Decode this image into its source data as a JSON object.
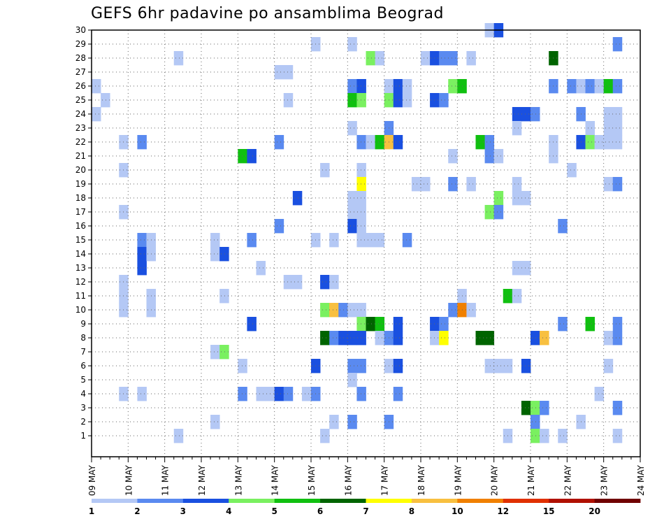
{
  "chart_data": {
    "type": "heatmap",
    "title": "GEFS 6hr padavine po ansamblima Beograd",
    "xlabel": "",
    "ylabel": "",
    "x_tick_labels": [
      "09 MAY",
      "10 MAY",
      "11 MAY",
      "12 MAY",
      "13 MAY",
      "14 MAY",
      "15 MAY",
      "16 MAY",
      "17 MAY",
      "18 MAY",
      "19 MAY",
      "20 MAY",
      "21 MAY",
      "22 MAY",
      "23 MAY",
      "24 MAY"
    ],
    "y_tick_labels": [
      "1",
      "2",
      "3",
      "4",
      "5",
      "6",
      "7",
      "8",
      "9",
      "10",
      "11",
      "12",
      "13",
      "14",
      "15",
      "16",
      "17",
      "18",
      "19",
      "20",
      "21",
      "22",
      "23",
      "24",
      "25",
      "26",
      "27",
      "28",
      "29",
      "30"
    ],
    "time_step_hours": 6,
    "grid": "dotted",
    "colorbar": {
      "labels": [
        "1",
        "2",
        "3",
        "4",
        "5",
        "6",
        "7",
        "8",
        "10",
        "12",
        "15",
        "20"
      ],
      "colors": [
        "#b4c8f5",
        "#5a8af0",
        "#1a50e0",
        "#7af060",
        "#10c010",
        "#006400",
        "#ffff00",
        "#f8c040",
        "#f08000",
        "#e03000",
        "#b01000",
        "#700000"
      ]
    },
    "cells": [
      [
        0,
        26,
        1,
        "#b4c8f5"
      ],
      [
        0,
        24,
        1,
        "#b4c8f5"
      ],
      [
        1,
        25,
        1,
        "#b4c8f5"
      ],
      [
        3,
        11,
        1,
        "#b4c8f5"
      ],
      [
        3,
        10,
        1,
        "#b4c8f5"
      ],
      [
        3,
        12,
        1,
        "#b4c8f5"
      ],
      [
        3,
        17,
        1,
        "#b4c8f5"
      ],
      [
        3,
        22,
        1,
        "#b4c8f5"
      ],
      [
        3,
        20,
        1,
        "#b4c8f5"
      ],
      [
        3,
        4,
        1,
        "#b4c8f5"
      ],
      [
        5,
        22,
        2,
        "#5a8af0"
      ],
      [
        5,
        15,
        2,
        "#5a8af0"
      ],
      [
        5,
        14,
        3,
        "#1a50e0"
      ],
      [
        5,
        13,
        3,
        "#1a50e0"
      ],
      [
        5,
        4,
        1,
        "#b4c8f5"
      ],
      [
        6,
        15,
        1,
        "#b4c8f5"
      ],
      [
        6,
        14,
        1,
        "#b4c8f5"
      ],
      [
        6,
        10,
        1,
        "#b4c8f5"
      ],
      [
        6,
        11,
        1,
        "#b4c8f5"
      ],
      [
        9,
        28,
        1,
        "#b4c8f5"
      ],
      [
        9,
        1,
        1,
        "#b4c8f5"
      ],
      [
        13,
        15,
        1,
        "#b4c8f5"
      ],
      [
        13,
        14,
        1,
        "#b4c8f5"
      ],
      [
        13,
        7,
        1,
        "#b4c8f5"
      ],
      [
        13,
        2,
        1,
        "#b4c8f5"
      ],
      [
        14,
        14,
        3,
        "#1a50e0"
      ],
      [
        14,
        11,
        1,
        "#b4c8f5"
      ],
      [
        14,
        7,
        5,
        "#7af060"
      ],
      [
        16,
        21,
        6,
        "#10c010"
      ],
      [
        16,
        6,
        1,
        "#b4c8f5"
      ],
      [
        16,
        4,
        2,
        "#5a8af0"
      ],
      [
        17,
        21,
        3,
        "#1a50e0"
      ],
      [
        17,
        15,
        2,
        "#5a8af0"
      ],
      [
        17,
        9,
        3,
        "#1a50e0"
      ],
      [
        18,
        13,
        1,
        "#b4c8f5"
      ],
      [
        18,
        4,
        1,
        "#b4c8f5"
      ],
      [
        19,
        4,
        1,
        "#b4c8f5"
      ],
      [
        20,
        27,
        1,
        "#b4c8f5"
      ],
      [
        20,
        22,
        2,
        "#5a8af0"
      ],
      [
        20,
        16,
        2,
        "#5a8af0"
      ],
      [
        20,
        4,
        3,
        "#1a50e0"
      ],
      [
        21,
        27,
        1,
        "#b4c8f5"
      ],
      [
        21,
        25,
        1,
        "#b4c8f5"
      ],
      [
        21,
        12,
        1,
        "#b4c8f5"
      ],
      [
        21,
        4,
        2,
        "#5a8af0"
      ],
      [
        22,
        18,
        3,
        "#1a50e0"
      ],
      [
        22,
        12,
        1,
        "#b4c8f5"
      ],
      [
        23,
        4,
        1,
        "#b4c8f5"
      ],
      [
        24,
        29,
        1,
        "#b4c8f5"
      ],
      [
        24,
        15,
        1,
        "#b4c8f5"
      ],
      [
        24,
        6,
        3,
        "#1a50e0"
      ],
      [
        24,
        4,
        2,
        "#5a8af0"
      ],
      [
        25,
        20,
        1,
        "#b4c8f5"
      ],
      [
        25,
        12,
        3,
        "#1a50e0"
      ],
      [
        25,
        10,
        5,
        "#7af060"
      ],
      [
        25,
        8,
        6,
        "#006400"
      ],
      [
        25,
        1,
        1,
        "#b4c8f5"
      ],
      [
        26,
        15,
        1,
        "#b4c8f5"
      ],
      [
        26,
        12,
        1,
        "#b4c8f5"
      ],
      [
        26,
        10,
        8,
        "#f8c040"
      ],
      [
        26,
        8,
        2,
        "#5a8af0"
      ],
      [
        26,
        2,
        1,
        "#b4c8f5"
      ],
      [
        27,
        10,
        2,
        "#5a8af0"
      ],
      [
        27,
        8,
        3,
        "#1a50e0"
      ],
      [
        28,
        29,
        1,
        "#b4c8f5"
      ],
      [
        28,
        26,
        2,
        "#5a8af0"
      ],
      [
        28,
        25,
        6,
        "#10c010"
      ],
      [
        28,
        23,
        1,
        "#b4c8f5"
      ],
      [
        28,
        18,
        1,
        "#b4c8f5"
      ],
      [
        28,
        17,
        1,
        "#b4c8f5"
      ],
      [
        28,
        16,
        3,
        "#1a50e0"
      ],
      [
        28,
        10,
        1,
        "#b4c8f5"
      ],
      [
        28,
        8,
        3,
        "#1a50e0"
      ],
      [
        28,
        6,
        2,
        "#5a8af0"
      ],
      [
        28,
        5,
        1,
        "#b4c8f5"
      ],
      [
        28,
        2,
        2,
        "#5a8af0"
      ],
      [
        29,
        26,
        3,
        "#1a50e0"
      ],
      [
        29,
        25,
        5,
        "#7af060"
      ],
      [
        29,
        22,
        2,
        "#5a8af0"
      ],
      [
        29,
        20,
        1,
        "#b4c8f5"
      ],
      [
        29,
        19,
        7,
        "#ffff00"
      ],
      [
        29,
        18,
        1,
        "#b4c8f5"
      ],
      [
        29,
        17,
        1,
        "#b4c8f5"
      ],
      [
        29,
        16,
        1,
        "#b4c8f5"
      ],
      [
        29,
        15,
        1,
        "#b4c8f5"
      ],
      [
        29,
        10,
        1,
        "#b4c8f5"
      ],
      [
        29,
        9,
        5,
        "#7af060"
      ],
      [
        29,
        8,
        3,
        "#1a50e0"
      ],
      [
        29,
        6,
        2,
        "#5a8af0"
      ],
      [
        29,
        4,
        2,
        "#5a8af0"
      ],
      [
        30,
        28,
        5,
        "#7af060"
      ],
      [
        30,
        22,
        1,
        "#b4c8f5"
      ],
      [
        30,
        15,
        1,
        "#b4c8f5"
      ],
      [
        30,
        9,
        6,
        "#006400"
      ],
      [
        31,
        28,
        1,
        "#b4c8f5"
      ],
      [
        31,
        22,
        6,
        "#10c010"
      ],
      [
        31,
        15,
        1,
        "#b4c8f5"
      ],
      [
        31,
        9,
        5,
        "#10c010"
      ],
      [
        31,
        8,
        1,
        "#b4c8f5"
      ],
      [
        32,
        26,
        1,
        "#b4c8f5"
      ],
      [
        32,
        25,
        5,
        "#7af060"
      ],
      [
        32,
        23,
        2,
        "#5a8af0"
      ],
      [
        32,
        22,
        8,
        "#f8c040"
      ],
      [
        32,
        8,
        2,
        "#5a8af0"
      ],
      [
        32,
        6,
        1,
        "#b4c8f5"
      ],
      [
        32,
        2,
        2,
        "#5a8af0"
      ],
      [
        33,
        26,
        3,
        "#1a50e0"
      ],
      [
        33,
        25,
        3,
        "#1a50e0"
      ],
      [
        33,
        22,
        3,
        "#1a50e0"
      ],
      [
        33,
        9,
        3,
        "#1a50e0"
      ],
      [
        33,
        8,
        3,
        "#1a50e0"
      ],
      [
        33,
        6,
        3,
        "#1a50e0"
      ],
      [
        33,
        4,
        2,
        "#5a8af0"
      ],
      [
        34,
        26,
        1,
        "#b4c8f5"
      ],
      [
        34,
        25,
        1,
        "#b4c8f5"
      ],
      [
        34,
        15,
        2,
        "#5a8af0"
      ],
      [
        35,
        19,
        1,
        "#b4c8f5"
      ],
      [
        36,
        28,
        1,
        "#b4c8f5"
      ],
      [
        36,
        19,
        1,
        "#b4c8f5"
      ],
      [
        37,
        28,
        3,
        "#1a50e0"
      ],
      [
        37,
        25,
        3,
        "#1a50e0"
      ],
      [
        37,
        9,
        3,
        "#1a50e0"
      ],
      [
        37,
        8,
        1,
        "#b4c8f5"
      ],
      [
        38,
        28,
        2,
        "#5a8af0"
      ],
      [
        38,
        25,
        2,
        "#5a8af0"
      ],
      [
        38,
        9,
        2,
        "#5a8af0"
      ],
      [
        38,
        8,
        7,
        "#ffff00"
      ],
      [
        39,
        28,
        2,
        "#5a8af0"
      ],
      [
        39,
        26,
        5,
        "#7af060"
      ],
      [
        39,
        21,
        1,
        "#b4c8f5"
      ],
      [
        39,
        19,
        2,
        "#5a8af0"
      ],
      [
        39,
        10,
        2,
        "#5a8af0"
      ],
      [
        40,
        26,
        6,
        "#10c010"
      ],
      [
        40,
        11,
        1,
        "#b4c8f5"
      ],
      [
        40,
        10,
        10,
        "#f08000"
      ],
      [
        41,
        28,
        1,
        "#b4c8f5"
      ],
      [
        41,
        19,
        1,
        "#b4c8f5"
      ],
      [
        41,
        10,
        1,
        "#b4c8f5"
      ],
      [
        42,
        22,
        6,
        "#10c010"
      ],
      [
        42,
        8,
        6,
        "#006400"
      ],
      [
        43,
        30,
        1,
        "#b4c8f5"
      ],
      [
        43,
        22,
        2,
        "#5a8af0"
      ],
      [
        43,
        21,
        2,
        "#5a8af0"
      ],
      [
        43,
        17,
        5,
        "#7af060"
      ],
      [
        43,
        8,
        6,
        "#006400"
      ],
      [
        43,
        6,
        1,
        "#b4c8f5"
      ],
      [
        44,
        30,
        3,
        "#1a50e0"
      ],
      [
        44,
        21,
        1,
        "#b4c8f5"
      ],
      [
        44,
        18,
        5,
        "#7af060"
      ],
      [
        44,
        17,
        2,
        "#5a8af0"
      ],
      [
        44,
        6,
        1,
        "#b4c8f5"
      ],
      [
        45,
        11,
        6,
        "#10c010"
      ],
      [
        45,
        6,
        1,
        "#b4c8f5"
      ],
      [
        45,
        1,
        1,
        "#b4c8f5"
      ],
      [
        46,
        24,
        3,
        "#1a50e0"
      ],
      [
        46,
        23,
        1,
        "#b4c8f5"
      ],
      [
        46,
        19,
        1,
        "#b4c8f5"
      ],
      [
        46,
        18,
        1,
        "#b4c8f5"
      ],
      [
        46,
        13,
        1,
        "#b4c8f5"
      ],
      [
        46,
        11,
        1,
        "#b4c8f5"
      ],
      [
        47,
        24,
        3,
        "#1a50e0"
      ],
      [
        47,
        18,
        1,
        "#b4c8f5"
      ],
      [
        47,
        13,
        1,
        "#b4c8f5"
      ],
      [
        47,
        6,
        3,
        "#1a50e0"
      ],
      [
        47,
        3,
        6,
        "#006400"
      ],
      [
        48,
        24,
        2,
        "#5a8af0"
      ],
      [
        48,
        8,
        3,
        "#1a50e0"
      ],
      [
        48,
        3,
        5,
        "#7af060"
      ],
      [
        48,
        2,
        2,
        "#5a8af0"
      ],
      [
        48,
        1,
        5,
        "#7af060"
      ],
      [
        49,
        8,
        8,
        "#f8c040"
      ],
      [
        49,
        3,
        2,
        "#5a8af0"
      ],
      [
        49,
        1,
        1,
        "#b4c8f5"
      ],
      [
        50,
        28,
        6,
        "#006400"
      ],
      [
        50,
        26,
        2,
        "#5a8af0"
      ],
      [
        50,
        22,
        1,
        "#b4c8f5"
      ],
      [
        50,
        21,
        1,
        "#b4c8f5"
      ],
      [
        51,
        16,
        2,
        "#5a8af0"
      ],
      [
        51,
        9,
        2,
        "#5a8af0"
      ],
      [
        51,
        1,
        1,
        "#b4c8f5"
      ],
      [
        52,
        26,
        2,
        "#5a8af0"
      ],
      [
        52,
        20,
        1,
        "#b4c8f5"
      ],
      [
        53,
        26,
        1,
        "#b4c8f5"
      ],
      [
        53,
        24,
        2,
        "#5a8af0"
      ],
      [
        53,
        22,
        3,
        "#1a50e0"
      ],
      [
        53,
        2,
        1,
        "#b4c8f5"
      ],
      [
        54,
        26,
        2,
        "#5a8af0"
      ],
      [
        54,
        23,
        1,
        "#b4c8f5"
      ],
      [
        54,
        22,
        5,
        "#7af060"
      ],
      [
        54,
        9,
        6,
        "#10c010"
      ],
      [
        55,
        26,
        1,
        "#b4c8f5"
      ],
      [
        55,
        22,
        1,
        "#b4c8f5"
      ],
      [
        55,
        4,
        1,
        "#b4c8f5"
      ],
      [
        56,
        26,
        6,
        "#10c010"
      ],
      [
        56,
        24,
        1,
        "#b4c8f5"
      ],
      [
        56,
        23,
        1,
        "#b4c8f5"
      ],
      [
        56,
        22,
        1,
        "#b4c8f5"
      ],
      [
        56,
        19,
        1,
        "#b4c8f5"
      ],
      [
        56,
        8,
        1,
        "#b4c8f5"
      ],
      [
        56,
        6,
        1,
        "#b4c8f5"
      ],
      [
        57,
        29,
        2,
        "#5a8af0"
      ],
      [
        57,
        26,
        2,
        "#5a8af0"
      ],
      [
        57,
        24,
        1,
        "#b4c8f5"
      ],
      [
        57,
        23,
        1,
        "#b4c8f5"
      ],
      [
        57,
        22,
        1,
        "#b4c8f5"
      ],
      [
        57,
        19,
        2,
        "#5a8af0"
      ],
      [
        57,
        9,
        2,
        "#5a8af0"
      ],
      [
        57,
        8,
        2,
        "#5a8af0"
      ],
      [
        57,
        3,
        2,
        "#5a8af0"
      ],
      [
        57,
        1,
        1,
        "#b4c8f5"
      ]
    ]
  }
}
